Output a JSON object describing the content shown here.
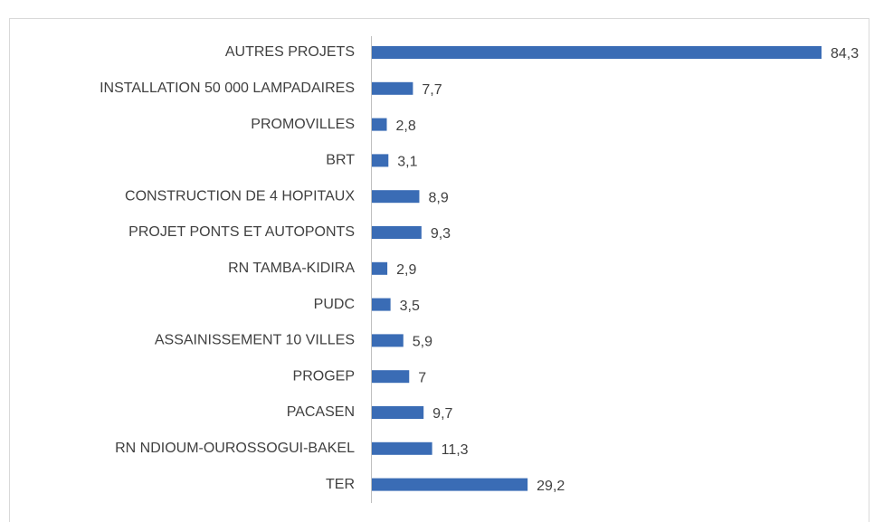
{
  "chart_data": {
    "type": "bar",
    "orientation": "horizontal",
    "categories": [
      "AUTRES PROJETS",
      "INSTALLATION 50 000 LAMPADAIRES",
      "PROMOVILLES",
      "BRT",
      "CONSTRUCTION DE 4 HOPITAUX",
      "PROJET PONTS ET AUTOPONTS",
      "RN TAMBA-KIDIRA",
      "PUDC",
      "ASSAINISSEMENT 10 VILLES",
      "PROGEP",
      "PACASEN",
      "RN NDIOUM-OUROSSOGUI-BAKEL",
      "TER"
    ],
    "values": [
      84.3,
      7.7,
      2.8,
      3.1,
      8.9,
      9.3,
      2.9,
      3.5,
      5.9,
      7,
      9.7,
      11.3,
      29.2
    ],
    "value_labels": [
      "84,3",
      "7,7",
      "2,8",
      "3,1",
      "8,9",
      "9,3",
      "2,9",
      "3,5",
      "5,9",
      "7",
      "9,7",
      "11,3",
      "29,2"
    ],
    "color": "#3a6cb5"
  }
}
